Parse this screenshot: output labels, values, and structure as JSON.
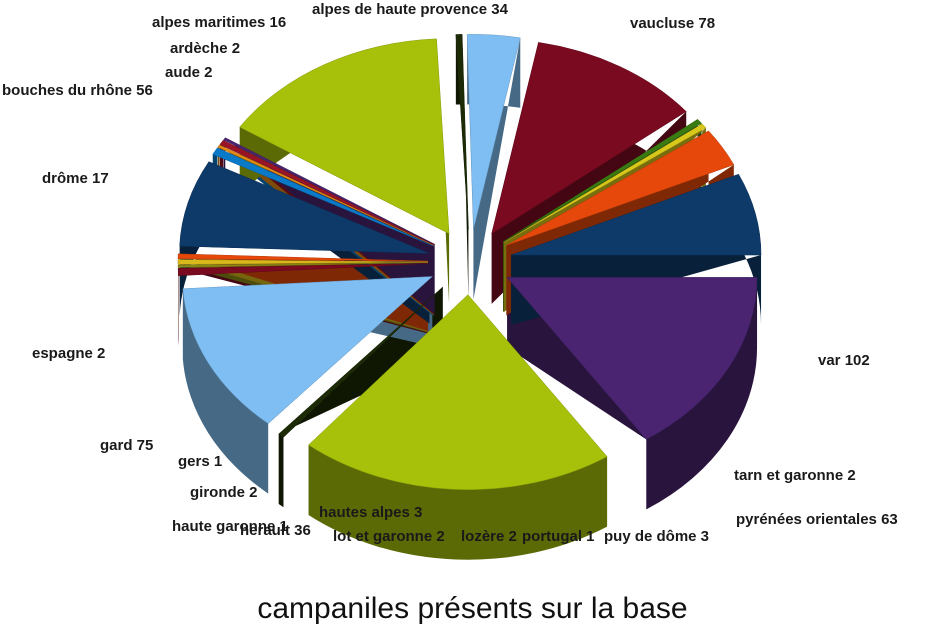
{
  "chart_data": {
    "type": "pie",
    "title": "campaniles présents sur la base",
    "exploded": true,
    "three_d": true,
    "slices": [
      {
        "label": "vaucluse",
        "value": 78,
        "color": "#4a2470"
      },
      {
        "label": "var",
        "value": 102,
        "color": "#a7c10a"
      },
      {
        "label": "tarn et garonne",
        "value": 2,
        "color": "#1c2a06"
      },
      {
        "label": "pyrénées orientales",
        "value": 63,
        "color": "#7fbef2"
      },
      {
        "label": "puy de dôme",
        "value": 3,
        "color": "#7a0a20"
      },
      {
        "label": "portugal",
        "value": 1,
        "color": "#8a8a18"
      },
      {
        "label": "lozère",
        "value": 2,
        "color": "#d8b81a"
      },
      {
        "label": "lot et garonne",
        "value": 2,
        "color": "#e5480a"
      },
      {
        "label": "herault",
        "value": 36,
        "color": "#0e3a6a"
      },
      {
        "label": "hautes alpes",
        "value": 3,
        "color": "#0a7ac8"
      },
      {
        "label": "haute garonne",
        "value": 1,
        "color": "#e58a12"
      },
      {
        "label": "gironde",
        "value": 2,
        "color": "#9a1428"
      },
      {
        "label": "gers",
        "value": 1,
        "color": "#4a2470"
      },
      {
        "label": "gard",
        "value": 75,
        "color": "#a7c10a"
      },
      {
        "label": "espagne",
        "value": 2,
        "color": "#1c2a06"
      },
      {
        "label": "drôme",
        "value": 17,
        "color": "#7fbef2"
      },
      {
        "label": "bouches du rhône",
        "value": 56,
        "color": "#7a0a20"
      },
      {
        "label": "aude",
        "value": 2,
        "color": "#3a7a12"
      },
      {
        "label": "ardèche",
        "value": 2,
        "color": "#d8c81a"
      },
      {
        "label": "alpes maritimes",
        "value": 16,
        "color": "#e5480a"
      },
      {
        "label": "alpes de haute provence",
        "value": 34,
        "color": "#0e3a6a"
      }
    ]
  }
}
